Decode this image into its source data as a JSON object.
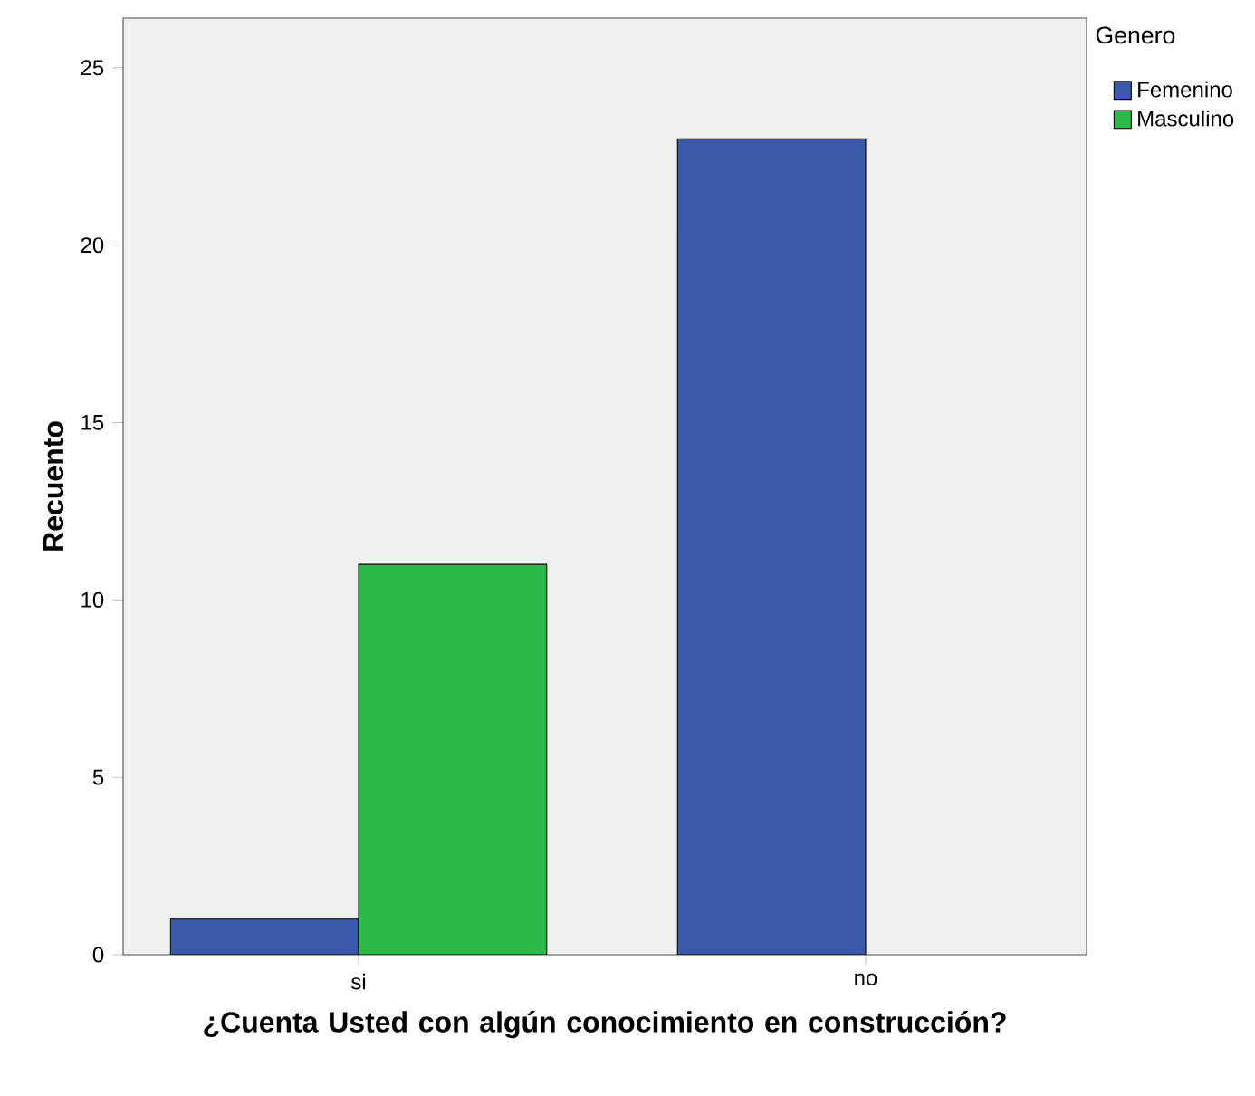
{
  "chart_data": {
    "type": "bar",
    "xlabel": "¿Cuenta Usted con algún conocimiento en construcción?",
    "ylabel": "Recuento",
    "legend_title": "Genero",
    "categories": [
      "si",
      "no"
    ],
    "series": [
      {
        "name": "Femenino",
        "color": "#3c58a8",
        "values": [
          1,
          23
        ]
      },
      {
        "name": "Masculino",
        "color": "#2db84a",
        "values": [
          11,
          null
        ]
      }
    ],
    "ylim": [
      0,
      26.4
    ],
    "yticks": [
      0,
      5,
      10,
      15,
      20,
      25
    ],
    "grid": false,
    "legend": "top right"
  }
}
